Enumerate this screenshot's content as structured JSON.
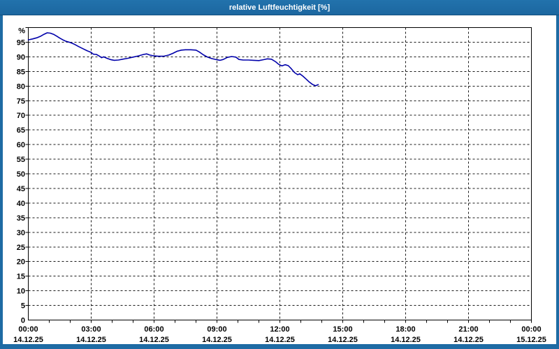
{
  "window": {
    "title": "relative Luftfeuchtigkeit [%]"
  },
  "colors": {
    "titlebar": "#1e6ba4",
    "frame_border": "#1e6ba4",
    "plot_background": "#ffffff",
    "grid": "#1a1a1a",
    "axis": "#000000",
    "series_line": "#0000aa",
    "title_text": "#ffffff"
  },
  "chart_data": {
    "type": "line",
    "title": "relative Luftfeuchtigkeit [%]",
    "y_unit_label": "%",
    "ylim": [
      0,
      100
    ],
    "y_tick_step": 5,
    "y_tick_labels": [
      "0",
      "5",
      "10",
      "15",
      "20",
      "25",
      "30",
      "35",
      "40",
      "45",
      "50",
      "55",
      "60",
      "65",
      "70",
      "75",
      "80",
      "85",
      "90",
      "95"
    ],
    "x_hours_range": [
      0,
      24
    ],
    "x_major_step_hours": 3,
    "x_minor_step_hours": 1,
    "grid": "dashed",
    "legend_position": "none",
    "x_ticks": [
      {
        "time": "00:00",
        "date": "14.12.25"
      },
      {
        "time": "03:00",
        "date": "14.12.25"
      },
      {
        "time": "06:00",
        "date": "14.12.25"
      },
      {
        "time": "09:00",
        "date": "14.12.25"
      },
      {
        "time": "12:00",
        "date": "14.12.25"
      },
      {
        "time": "15:00",
        "date": "14.12.25"
      },
      {
        "time": "18:00",
        "date": "14.12.25"
      },
      {
        "time": "21:00",
        "date": "14.12.25"
      },
      {
        "time": "00:00",
        "date": "15.12.25"
      }
    ],
    "series": [
      {
        "name": "relative Luftfeuchtigkeit",
        "color": "#0000aa",
        "points_hours_percent": [
          [
            0.0,
            95.8
          ],
          [
            0.2,
            96.1
          ],
          [
            0.4,
            96.5
          ],
          [
            0.6,
            97.1
          ],
          [
            0.75,
            97.7
          ],
          [
            0.9,
            98.2
          ],
          [
            1.05,
            98.1
          ],
          [
            1.2,
            97.7
          ],
          [
            1.35,
            97.1
          ],
          [
            1.5,
            96.4
          ],
          [
            1.65,
            95.8
          ],
          [
            1.8,
            95.3
          ],
          [
            2.0,
            94.9
          ],
          [
            2.2,
            94.3
          ],
          [
            2.4,
            93.5
          ],
          [
            2.6,
            92.8
          ],
          [
            2.8,
            92.1
          ],
          [
            3.0,
            91.5
          ],
          [
            3.1,
            90.9
          ],
          [
            3.25,
            90.8
          ],
          [
            3.4,
            90.2
          ],
          [
            3.5,
            89.7
          ],
          [
            3.6,
            90.0
          ],
          [
            3.75,
            89.5
          ],
          [
            3.95,
            89.0
          ],
          [
            4.1,
            88.8
          ],
          [
            4.3,
            88.9
          ],
          [
            4.5,
            89.2
          ],
          [
            4.75,
            89.5
          ],
          [
            5.0,
            89.9
          ],
          [
            5.25,
            90.3
          ],
          [
            5.5,
            90.8
          ],
          [
            5.65,
            91.0
          ],
          [
            5.8,
            90.6
          ],
          [
            6.0,
            90.3
          ],
          [
            6.2,
            90.2
          ],
          [
            6.45,
            90.2
          ],
          [
            6.7,
            90.6
          ],
          [
            6.9,
            91.2
          ],
          [
            7.1,
            91.9
          ],
          [
            7.3,
            92.3
          ],
          [
            7.5,
            92.4
          ],
          [
            7.75,
            92.4
          ],
          [
            8.0,
            92.3
          ],
          [
            8.15,
            91.7
          ],
          [
            8.35,
            90.7
          ],
          [
            8.55,
            89.9
          ],
          [
            8.75,
            89.4
          ],
          [
            9.0,
            89.0
          ],
          [
            9.15,
            88.8
          ],
          [
            9.3,
            89.1
          ],
          [
            9.5,
            89.8
          ],
          [
            9.7,
            90.1
          ],
          [
            9.9,
            89.9
          ],
          [
            10.05,
            89.1
          ],
          [
            10.25,
            88.9
          ],
          [
            10.5,
            88.9
          ],
          [
            10.75,
            88.8
          ],
          [
            11.0,
            88.7
          ],
          [
            11.2,
            89.0
          ],
          [
            11.4,
            89.3
          ],
          [
            11.6,
            89.2
          ],
          [
            11.8,
            88.3
          ],
          [
            11.95,
            87.4
          ],
          [
            12.1,
            86.9
          ],
          [
            12.25,
            87.3
          ],
          [
            12.4,
            87.0
          ],
          [
            12.55,
            85.9
          ],
          [
            12.7,
            84.6
          ],
          [
            12.85,
            83.9
          ],
          [
            12.95,
            84.2
          ],
          [
            13.1,
            83.4
          ],
          [
            13.25,
            82.4
          ],
          [
            13.4,
            81.4
          ],
          [
            13.55,
            80.6
          ],
          [
            13.7,
            80.1
          ],
          [
            13.83,
            80.5
          ]
        ]
      }
    ]
  }
}
